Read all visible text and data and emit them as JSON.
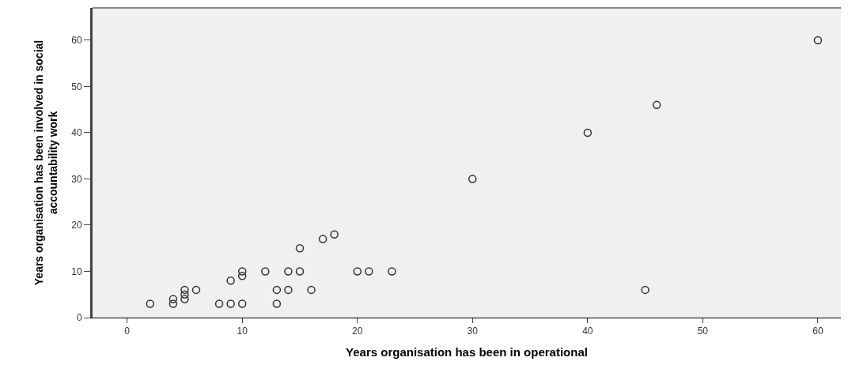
{
  "chart_data": {
    "type": "scatter",
    "xlabel": "Years organisation has been in operational",
    "ylabel": "Years organisation has been involved in social accountability work",
    "x": [
      2,
      4,
      4,
      5,
      5,
      5,
      6,
      8,
      9,
      10,
      9,
      10,
      10,
      12,
      13,
      14,
      13,
      14,
      15,
      15,
      16,
      17,
      18,
      20,
      21,
      23,
      30,
      40,
      45,
      46,
      60
    ],
    "series": [
      {
        "color": "#333333",
        "values": [
          3,
          3,
          4,
          4,
          5,
          6,
          6,
          3,
          3,
          3,
          8,
          9,
          10,
          10,
          6,
          6,
          3,
          10,
          10,
          15,
          6,
          17,
          18,
          10,
          10,
          10,
          30,
          40,
          6,
          46,
          60
        ]
      }
    ],
    "xlim": [
      -3,
      62
    ],
    "ylim": [
      0,
      67
    ],
    "xticks": [
      0,
      10,
      20,
      30,
      40,
      50,
      60
    ],
    "yticks": [
      0,
      10,
      20,
      30,
      40,
      50,
      60
    ],
    "grid": false,
    "marker": "circle"
  }
}
